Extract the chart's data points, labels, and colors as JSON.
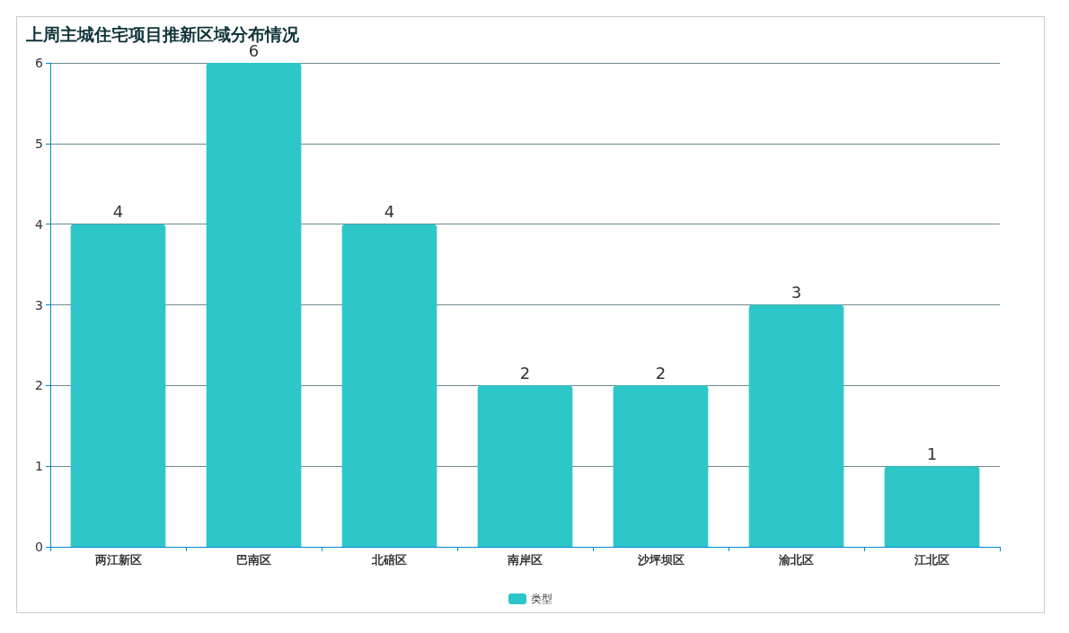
{
  "chart_data": {
    "type": "bar",
    "title": "上周主城住宅项目推新区域分布情况",
    "categories": [
      "两江新区",
      "巴南区",
      "北碚区",
      "南岸区",
      "沙坪坝区",
      "渝北区",
      "江北区"
    ],
    "series": [
      {
        "name": "类型",
        "color": "#2ec7c9",
        "values": [
          4,
          6,
          4,
          2,
          2,
          3,
          1
        ]
      }
    ],
    "ylim": [
      0,
      6
    ],
    "yticks": [
      0,
      1,
      2,
      3,
      4,
      5,
      6
    ],
    "grid": "y",
    "legend": "bottom",
    "data_labels": true
  }
}
